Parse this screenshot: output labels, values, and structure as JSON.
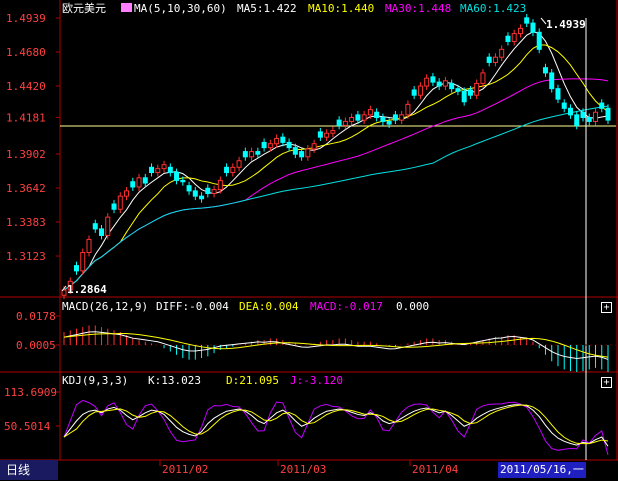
{
  "period_label": "日线",
  "cursor_date": "2011/05/16,一",
  "panel_button": "+",
  "price": {
    "title": "欧元美元",
    "ma_text": "MA(5,10,30,60)",
    "ma5": "MA5:1.422",
    "ma10": "MA10:1.440",
    "ma30": "MA30:1.448",
    "ma60": "MA60:1.423",
    "high_label": "1.4939",
    "low_label": "1.2864"
  },
  "macd": {
    "label": "MACD(26,12,9)",
    "diff": "DIFF:-0.004",
    "dea": "DEA:0.004",
    "macd": "MACD:-0.017",
    "extra": "0.000"
  },
  "kdj": {
    "label": "KDJ(9,3,3)",
    "k": "K:13.023",
    "d": "D:21.095",
    "j": "J:-3.120"
  },
  "colors": {
    "up": "#ff3030",
    "down": "#00ffff",
    "ma5": "#ffffff",
    "ma10": "#ffff00",
    "ma30": "#ff00ff",
    "ma60": "#00e0e0",
    "axis": "#b00000",
    "cursor": "#ffffff"
  },
  "chart_data": {
    "type": "candlestick",
    "x_labels": [
      "2011/02",
      "2011/03",
      "2011/04"
    ],
    "price_ticks": [
      1.4939,
      1.468,
      1.442,
      1.4181,
      1.3902,
      1.3642,
      1.3383,
      1.3123
    ],
    "price_range": [
      1.2864,
      1.4939
    ],
    "macd_ticks": [
      0.0178,
      0.0005
    ],
    "kdj_ticks": [
      113.6909,
      50.5014
    ],
    "closes": [
      1.2864,
      1.293,
      1.301,
      1.315,
      1.325,
      1.333,
      1.328,
      1.342,
      1.348,
      1.358,
      1.362,
      1.365,
      1.372,
      1.368,
      1.376,
      1.379,
      1.382,
      1.376,
      1.37,
      1.369,
      1.362,
      1.358,
      1.356,
      1.36,
      1.363,
      1.37,
      1.376,
      1.38,
      1.385,
      1.388,
      1.392,
      1.39,
      1.395,
      1.398,
      1.402,
      1.399,
      1.395,
      1.39,
      1.388,
      1.394,
      1.398,
      1.403,
      1.406,
      1.408,
      1.412,
      1.415,
      1.418,
      1.416,
      1.42,
      1.424,
      1.418,
      1.415,
      1.413,
      1.416,
      1.42,
      1.428,
      1.435,
      1.442,
      1.448,
      1.445,
      1.442,
      1.446,
      1.44,
      1.438,
      1.43,
      1.435,
      1.444,
      1.452,
      1.46,
      1.464,
      1.47,
      1.476,
      1.482,
      1.486,
      1.49,
      1.483,
      1.47,
      1.452,
      1.44,
      1.432,
      1.425,
      1.42,
      1.412,
      1.418,
      1.415,
      1.422,
      1.425,
      1.416
    ],
    "kdj_k": [
      30,
      45,
      60,
      72,
      78,
      80,
      75,
      82,
      85,
      80,
      70,
      62,
      68,
      75,
      80,
      78,
      72,
      60,
      48,
      40,
      35,
      32,
      40,
      55,
      65,
      72,
      78,
      80,
      82,
      78,
      70,
      60,
      55,
      65,
      75,
      80,
      72,
      60,
      50,
      55,
      65,
      72,
      78,
      80,
      82,
      80,
      76,
      72,
      70,
      75,
      70,
      60,
      55,
      58,
      65,
      72,
      78,
      82,
      84,
      80,
      75,
      78,
      70,
      60,
      50,
      55,
      65,
      72,
      78,
      82,
      85,
      88,
      90,
      90,
      88,
      80,
      68,
      52,
      38,
      28,
      22,
      18,
      15,
      20,
      18,
      25,
      30,
      13
    ],
    "macd_hist": [
      0.008,
      0.009,
      0.01,
      0.011,
      0.012,
      0.012,
      0.011,
      0.01,
      0.009,
      0.008,
      0.006,
      0.004,
      0.003,
      0.002,
      0.001,
      0.0,
      -0.002,
      -0.004,
      -0.006,
      -0.008,
      -0.009,
      -0.009,
      -0.008,
      -0.007,
      -0.005,
      -0.003,
      -0.002,
      -0.001,
      0.0,
      0.001,
      0.002,
      0.003,
      0.003,
      0.004,
      0.004,
      0.003,
      0.002,
      0.001,
      0.0,
      0.0,
      0.001,
      0.002,
      0.003,
      0.003,
      0.004,
      0.004,
      0.003,
      0.002,
      0.002,
      0.002,
      0.001,
      0.0,
      -0.001,
      -0.001,
      0.0,
      0.001,
      0.002,
      0.003,
      0.004,
      0.004,
      0.003,
      0.003,
      0.002,
      0.001,
      0.0,
      0.001,
      0.002,
      0.003,
      0.004,
      0.005,
      0.005,
      0.006,
      0.006,
      0.005,
      0.004,
      0.002,
      -0.002,
      -0.006,
      -0.01,
      -0.013,
      -0.015,
      -0.016,
      -0.017,
      -0.016,
      -0.015,
      -0.014,
      -0.015,
      -0.017
    ]
  }
}
